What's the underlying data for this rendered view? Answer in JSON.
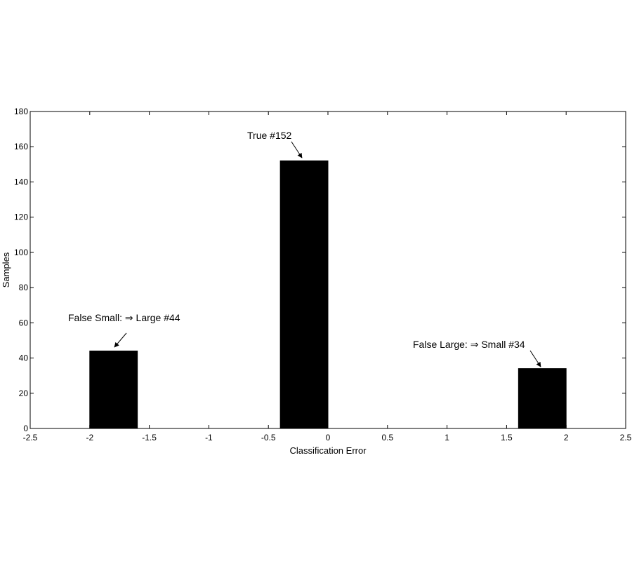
{
  "chart_data": {
    "type": "bar",
    "title": "",
    "xlabel": "Classification Error",
    "ylabel": "Samples",
    "xlim": [
      -2.5,
      2.5
    ],
    "ylim": [
      0,
      180
    ],
    "xticks": [
      "-2.5",
      "-2",
      "-1.5",
      "-1",
      "-0.5",
      "0",
      "0.5",
      "1",
      "1.5",
      "2",
      "2.5"
    ],
    "xtick_values": [
      -2.5,
      -2,
      -1.5,
      -1,
      -0.5,
      0,
      0.5,
      1,
      1.5,
      2,
      2.5
    ],
    "yticks": [
      "0",
      "20",
      "40",
      "60",
      "80",
      "100",
      "120",
      "140",
      "160",
      "180"
    ],
    "ytick_values": [
      0,
      20,
      40,
      60,
      80,
      100,
      120,
      140,
      160,
      180
    ],
    "bars": [
      {
        "x0": -2.0,
        "x1": -1.6,
        "value": 44
      },
      {
        "x0": -0.4,
        "x1": 0.0,
        "value": 152
      },
      {
        "x0": 1.6,
        "x1": 2.0,
        "value": 34
      }
    ],
    "annotations": [
      {
        "text": "False Small: ⇒ Large #44",
        "bar": 0
      },
      {
        "text": "True #152",
        "bar": 1
      },
      {
        "text": "False Large: ⇒ Small #34",
        "bar": 2
      }
    ],
    "grid": false,
    "bar_color": "#000000"
  }
}
